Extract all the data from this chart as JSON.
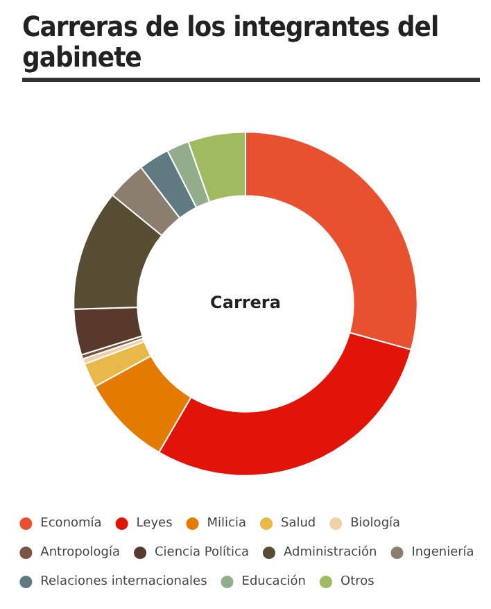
{
  "chart_data": {
    "type": "donut",
    "title": "Carreras de los integrantes del gabinete",
    "annotations": [
      "Carrera"
    ],
    "categories": [
      "Economía",
      "Leyes",
      "Milicia",
      "Salud",
      "Biología",
      "Antropología",
      "Ciencia Política",
      "Administración",
      "Ingeniería",
      "Relaciones internacionales",
      "Educación",
      "Otros"
    ],
    "values": [
      29.3,
      29.1,
      8.6,
      2.3,
      0.5,
      0.4,
      4.3,
      11.4,
      3.7,
      2.9,
      2.1,
      5.4
    ],
    "colors": [
      "#e8512f",
      "#e2140a",
      "#e37b00",
      "#e8b84a",
      "#f1cfa8",
      "#7a5442",
      "#573a2c",
      "#574d33",
      "#8b7e6e",
      "#5f7a80",
      "#92ad8b",
      "#a0bb5f"
    ],
    "legend": "bottom"
  }
}
